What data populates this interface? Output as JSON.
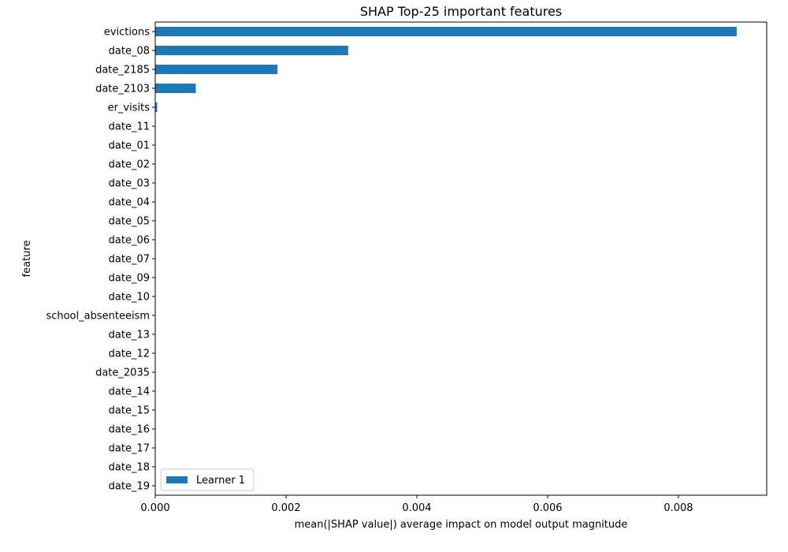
{
  "chart_data": {
    "type": "bar",
    "orientation": "horizontal",
    "title": "SHAP Top-25 important features",
    "xlabel": "mean(|SHAP value|) average impact on model output magnitude",
    "ylabel": "feature",
    "xlim": [
      0,
      0.00935
    ],
    "x_ticks": [
      {
        "value": 0.0,
        "label": "0.000"
      },
      {
        "value": 0.002,
        "label": "0.002"
      },
      {
        "value": 0.004,
        "label": "0.004"
      },
      {
        "value": 0.006,
        "label": "0.006"
      },
      {
        "value": 0.008,
        "label": "0.008"
      }
    ],
    "categories": [
      "evictions",
      "date_08",
      "date_2185",
      "date_2103",
      "er_visits",
      "date_11",
      "date_01",
      "date_02",
      "date_03",
      "date_04",
      "date_05",
      "date_06",
      "date_07",
      "date_09",
      "date_10",
      "school_absenteeism",
      "date_13",
      "date_12",
      "date_2035",
      "date_14",
      "date_15",
      "date_16",
      "date_17",
      "date_18",
      "date_19"
    ],
    "series": [
      {
        "name": "Learner 1",
        "color": "#1f77b4",
        "values": [
          0.00889,
          0.00295,
          0.00187,
          0.00062,
          3e-05,
          0,
          0,
          0,
          0,
          0,
          0,
          0,
          0,
          0,
          0,
          0,
          0,
          0,
          0,
          0,
          0,
          0,
          0,
          0,
          0
        ]
      }
    ],
    "legend": {
      "position": "lower-left"
    },
    "grid": false
  }
}
